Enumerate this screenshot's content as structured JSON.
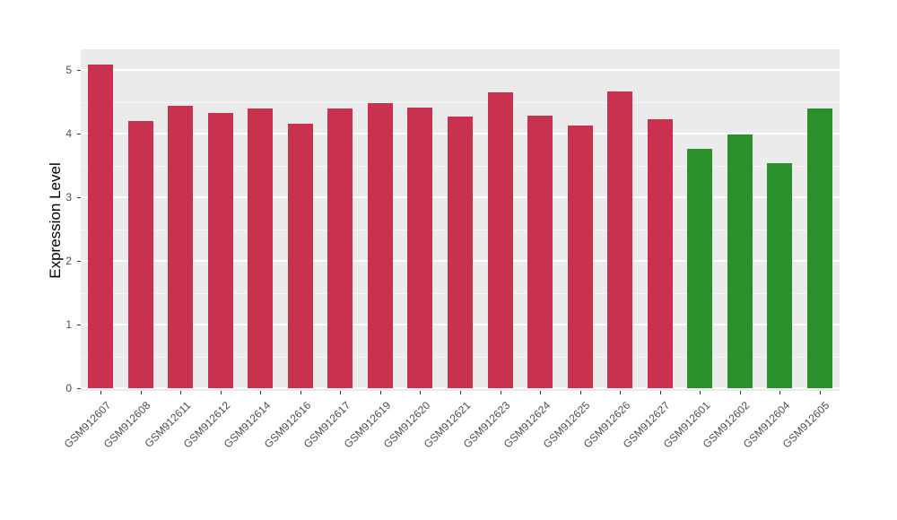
{
  "chart_data": {
    "type": "bar",
    "title": "",
    "xlabel": "",
    "ylabel": "Expression Level",
    "ylim": [
      0,
      5.35
    ],
    "yticks": [
      0,
      1,
      2,
      3,
      4,
      5
    ],
    "grid": "on",
    "legend_position": "none",
    "categories": [
      "GSM912607",
      "GSM912608",
      "GSM912611",
      "GSM912612",
      "GSM912614",
      "GSM912616",
      "GSM912617",
      "GSM912619",
      "GSM912620",
      "GSM912621",
      "GSM912623",
      "GSM912624",
      "GSM912625",
      "GSM912626",
      "GSM912627",
      "GSM912601",
      "GSM912602",
      "GSM912604",
      "GSM912605"
    ],
    "values": [
      5.08,
      4.2,
      4.43,
      4.33,
      4.39,
      4.16,
      4.39,
      4.48,
      4.41,
      4.27,
      4.65,
      4.28,
      4.13,
      4.66,
      4.22,
      3.76,
      3.98,
      3.53,
      4.39
    ],
    "groups": [
      "red",
      "red",
      "red",
      "red",
      "red",
      "red",
      "red",
      "red",
      "red",
      "red",
      "red",
      "red",
      "red",
      "red",
      "red",
      "green",
      "green",
      "green",
      "green"
    ],
    "group_colors": {
      "red": "#C8324E",
      "green": "#2B8F2B"
    }
  },
  "style_colors": {
    "panel_background": "#EBEBEB",
    "grid_major": "#FFFFFF",
    "axis_text": "#4D4D4D",
    "axis_title": "#000000"
  }
}
